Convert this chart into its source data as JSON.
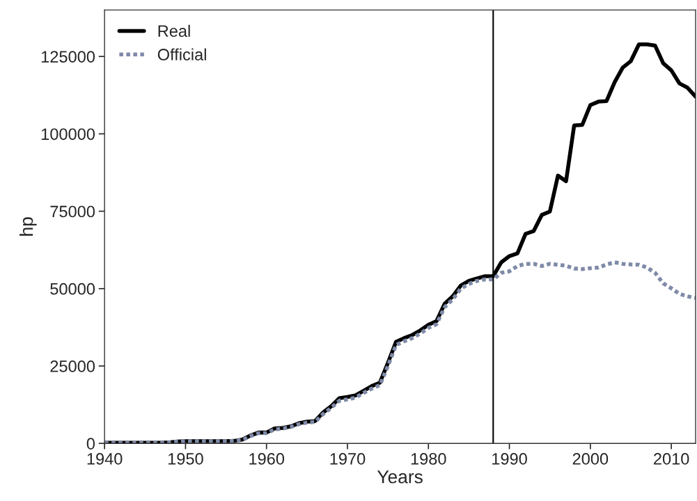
{
  "chart_data": {
    "type": "line",
    "xlabel": "Years",
    "ylabel": "hp",
    "x": [
      1940,
      1941,
      1942,
      1943,
      1944,
      1945,
      1946,
      1947,
      1948,
      1949,
      1950,
      1951,
      1952,
      1953,
      1954,
      1955,
      1956,
      1957,
      1958,
      1959,
      1960,
      1961,
      1962,
      1963,
      1964,
      1965,
      1966,
      1967,
      1968,
      1969,
      1970,
      1971,
      1972,
      1973,
      1974,
      1975,
      1976,
      1977,
      1978,
      1979,
      1980,
      1981,
      1982,
      1983,
      1984,
      1985,
      1986,
      1987,
      1988,
      1989,
      1990,
      1991,
      1992,
      1993,
      1994,
      1995,
      1996,
      1997,
      1998,
      1999,
      2000,
      2001,
      2002,
      2003,
      2004,
      2005,
      2006,
      2007,
      2008,
      2009,
      2010,
      2011,
      2012,
      2013
    ],
    "series": [
      {
        "name": "Real",
        "color": "#000000",
        "line_style": "solid",
        "values": [
          200,
          200,
          200,
          200,
          200,
          200,
          200,
          200,
          300,
          600,
          700,
          700,
          700,
          700,
          700,
          700,
          800,
          1200,
          2500,
          3500,
          3500,
          4800,
          5000,
          5500,
          6500,
          7000,
          7200,
          10000,
          12000,
          14600,
          15000,
          15500,
          17000,
          18500,
          19600,
          26000,
          32800,
          34000,
          35000,
          36500,
          38300,
          39500,
          45100,
          47500,
          51000,
          52500,
          53300,
          54000,
          54000,
          58500,
          60500,
          61400,
          67700,
          68600,
          73800,
          74900,
          86500,
          84700,
          102700,
          102900,
          109300,
          110400,
          110600,
          116700,
          121400,
          123500,
          128900,
          128900,
          128500,
          122800,
          120500,
          116300,
          114900,
          112000
        ]
      },
      {
        "name": "Official",
        "color": "#7f8aa8",
        "line_style": "dotted",
        "values": [
          200,
          200,
          200,
          200,
          200,
          200,
          200,
          200,
          300,
          600,
          700,
          700,
          700,
          700,
          700,
          700,
          800,
          1100,
          2300,
          3300,
          3300,
          4500,
          4800,
          5300,
          6200,
          6700,
          6900,
          9500,
          11500,
          13800,
          14200,
          14800,
          16300,
          17700,
          18800,
          25000,
          31800,
          33000,
          34000,
          35500,
          37300,
          38500,
          44000,
          46500,
          50000,
          51500,
          52500,
          53000,
          53000,
          55100,
          55600,
          57300,
          58000,
          58000,
          57300,
          58000,
          57700,
          57400,
          56500,
          56300,
          56600,
          56800,
          57800,
          58500,
          58000,
          57800,
          57700,
          56800,
          55100,
          51700,
          50100,
          48300,
          47500,
          47000
        ]
      }
    ],
    "xlim": [
      1940,
      2013
    ],
    "xticks": [
      1940,
      1950,
      1960,
      1970,
      1980,
      1990,
      2000,
      2010
    ],
    "ylim": [
      0,
      140000
    ],
    "yticks": [
      0,
      25000,
      50000,
      75000,
      100000,
      125000
    ],
    "ref_lines": [
      {
        "axis": "x",
        "value": 1988,
        "color": "#000000"
      }
    ],
    "grid": false,
    "legend": "top left"
  }
}
